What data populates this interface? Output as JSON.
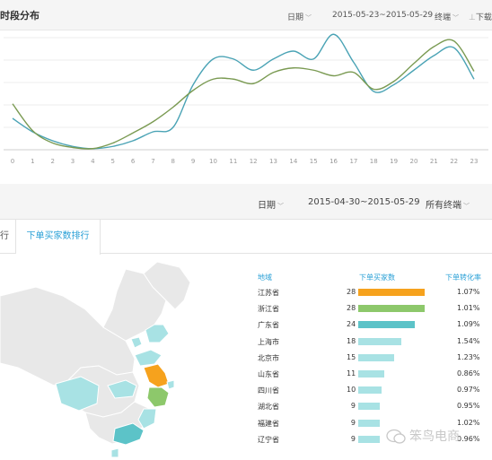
{
  "top_section": {
    "title": "时段分布",
    "date_label": "日期",
    "date_range": "2015-05-23~2015-05-29",
    "terminal": "终端",
    "download": "下载"
  },
  "chart_data": {
    "type": "line",
    "x": [
      0,
      1,
      2,
      3,
      4,
      5,
      6,
      7,
      8,
      9,
      10,
      11,
      12,
      13,
      14,
      15,
      16,
      17,
      18,
      19,
      20,
      21,
      22,
      23
    ],
    "x_tick_labels": [
      "0",
      "1",
      "2",
      "3",
      "4",
      "5",
      "6",
      "7",
      "8",
      "9",
      "10",
      "11",
      "12",
      "13",
      "14",
      "15",
      "16",
      "17",
      "18",
      "19",
      "20",
      "21",
      "22",
      "23"
    ],
    "grid": true,
    "ylim": [
      0,
      100
    ],
    "series": [
      {
        "color": "#4aa3b5",
        "values": [
          28,
          16,
          8,
          3,
          1,
          3,
          8,
          16,
          20,
          58,
          81,
          81,
          71,
          81,
          88,
          81,
          103,
          78,
          52,
          58,
          71,
          84,
          91,
          63
        ]
      },
      {
        "color": "#7a9a52",
        "values": [
          41,
          17,
          6,
          2,
          1,
          6,
          15,
          25,
          38,
          53,
          63,
          63,
          59,
          69,
          73,
          71,
          66,
          69,
          54,
          61,
          77,
          92,
          97,
          70
        ]
      }
    ]
  },
  "second_bar": {
    "date_label": "日期",
    "date_range": "2015-04-30~2015-05-29",
    "terminal": "所有终端"
  },
  "tabs": [
    {
      "label": "行"
    },
    {
      "label": "下单买家数排行"
    }
  ],
  "ranking": {
    "headers": {
      "region": "地域",
      "buyers": "下单买家数",
      "rate": "下单转化率"
    },
    "rows": [
      {
        "region": "江苏省",
        "count": 28,
        "rate": "1.07%",
        "color": "#f6a21d"
      },
      {
        "region": "浙江省",
        "count": 28,
        "rate": "1.01%",
        "color": "#8dc86b"
      },
      {
        "region": "广东省",
        "count": 24,
        "rate": "1.09%",
        "color": "#5cc3c8"
      },
      {
        "region": "上海市",
        "count": 18,
        "rate": "1.54%",
        "color": "#a8e2e4"
      },
      {
        "region": "北京市",
        "count": 15,
        "rate": "1.23%",
        "color": "#a8e2e4"
      },
      {
        "region": "山东省",
        "count": 11,
        "rate": "0.86%",
        "color": "#a8e2e4"
      },
      {
        "region": "四川省",
        "count": 10,
        "rate": "0.97%",
        "color": "#a8e2e4"
      },
      {
        "region": "湖北省",
        "count": 9,
        "rate": "0.95%",
        "color": "#a8e2e4"
      },
      {
        "region": "福建省",
        "count": 9,
        "rate": "1.02%",
        "color": "#a8e2e4"
      },
      {
        "region": "辽宁省",
        "count": 9,
        "rate": "0.96%",
        "color": "#a8e2e4"
      }
    ],
    "max_count": 28
  },
  "watermark": "笨鸟电商"
}
